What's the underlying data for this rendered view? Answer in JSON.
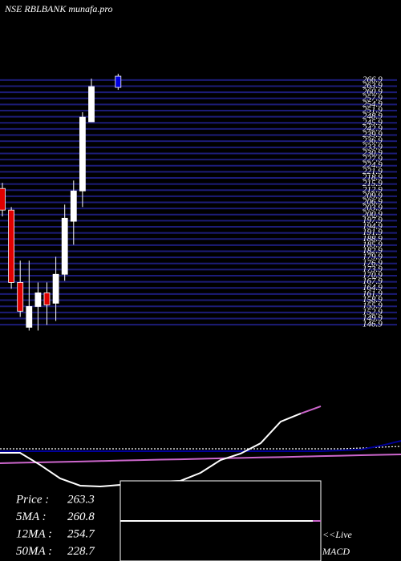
{
  "chart_data": [
    {
      "type": "candlestick",
      "title": "NSE RBLBANK munafa.pro",
      "open": [
        213.7,
        203.1,
        167.6,
        145.6,
        155.8,
        162.5,
        157.4,
        171.6,
        197.6,
        212.5,
        246.4,
        null,
        null,
        268.8
      ],
      "close": [
        203.1,
        167.6,
        153.5,
        155.8,
        162.5,
        156.6,
        171.6,
        199.1,
        212.5,
        248.7,
        263.7,
        null,
        null,
        263.3
      ],
      "high": [
        216.5,
        204.6,
        178.3,
        178.3,
        167.6,
        167.6,
        180.2,
        205.8,
        217.6,
        251.1,
        267.6,
        null,
        null,
        270
      ],
      "low": [
        200,
        164.5,
        150.7,
        144,
        144,
        146.8,
        148.7,
        168.4,
        186.1,
        204.6,
        246.4,
        null,
        null,
        262.1
      ],
      "colors": [
        "#e00000",
        "#e00000",
        "#e00000",
        "#ffffff",
        "#ffffff",
        "#e00000",
        "#ffffff",
        "#ffffff",
        "#ffffff",
        "#ffffff",
        "#ffffff",
        null,
        null,
        "#0000dd"
      ],
      "ylim": [
        143,
        270
      ],
      "yticks": [
        146.9,
        149.9,
        152.9,
        155.9,
        158.9,
        161.9,
        164.9,
        167.9,
        170.9,
        173.9,
        176.9,
        179.9,
        182.9,
        185.9,
        188.9,
        191.9,
        194.9,
        197.9,
        200.9,
        203.9,
        206.9,
        209.9,
        212.9,
        215.9,
        218.9,
        221.9,
        224.9,
        227.9,
        230.9,
        233.9,
        236.9,
        239.9,
        242.9,
        245.9,
        248.9,
        251.9,
        254.9,
        257.9,
        260.9,
        263.9,
        266.9
      ],
      "grid": true,
      "grid_color": "#1c1c78"
    },
    {
      "type": "line",
      "x": [
        0,
        1,
        2,
        3,
        4,
        5,
        6,
        7,
        8,
        9,
        10,
        11,
        12,
        13,
        14,
        15,
        16,
        17,
        18,
        19,
        20
      ],
      "xlim": [
        0,
        20
      ],
      "ylim": [
        0,
        100
      ],
      "series": [
        {
          "color": "#ffffff",
          "dash": true,
          "values": [
            50,
            50,
            50,
            50,
            50,
            50,
            50,
            50,
            50,
            50,
            50,
            50,
            50,
            50,
            50,
            50,
            50,
            50,
            50.8,
            51.7,
            52.5
          ]
        },
        {
          "color": "#000099",
          "dash": false,
          "values": [
            47.5,
            47.5,
            47.5,
            47.5,
            47.5,
            47.5,
            47.5,
            47.5,
            47.5,
            47.5,
            47.5,
            47.5,
            47.5,
            47.5,
            47.5,
            47.5,
            47.5,
            48.3,
            49.2,
            53.3,
            58.3
          ]
        },
        {
          "color": "#cc66cc",
          "dash": false,
          "values": [
            35,
            35.5,
            35.9,
            36.4,
            36.8,
            37.3,
            37.8,
            38.2,
            38.7,
            39.1,
            39.6,
            40.1,
            40.5,
            41,
            41.4,
            41.9,
            42.4,
            42.8,
            43.3,
            43.7,
            44.2
          ]
        },
        {
          "color": "#ffffff",
          "dash": false,
          "values": [
            45.8,
            45.8,
            33.3,
            19.2,
            11.7,
            10.8,
            12.5,
            15.8,
            15.8,
            16.7,
            25,
            38.3,
            45,
            55.8,
            78.3,
            86.7,
            null,
            null,
            null,
            null,
            null
          ]
        },
        {
          "color": "#cc66cc",
          "dash": false,
          "values": [
            null,
            null,
            null,
            null,
            null,
            null,
            null,
            null,
            null,
            null,
            null,
            null,
            null,
            null,
            null,
            86.7,
            94.2,
            null,
            null,
            null,
            null
          ]
        }
      ]
    }
  ],
  "info": {
    "rows": [
      {
        "label": "Price   :",
        "value": 263.3
      },
      {
        "label": "5MA :",
        "value": 260.8
      },
      {
        "label": "12MA :",
        "value": 254.7
      },
      {
        "label": "50MA :",
        "value": 228.7
      }
    ],
    "live_label": "<<Live",
    "macd_label": "MACD"
  }
}
